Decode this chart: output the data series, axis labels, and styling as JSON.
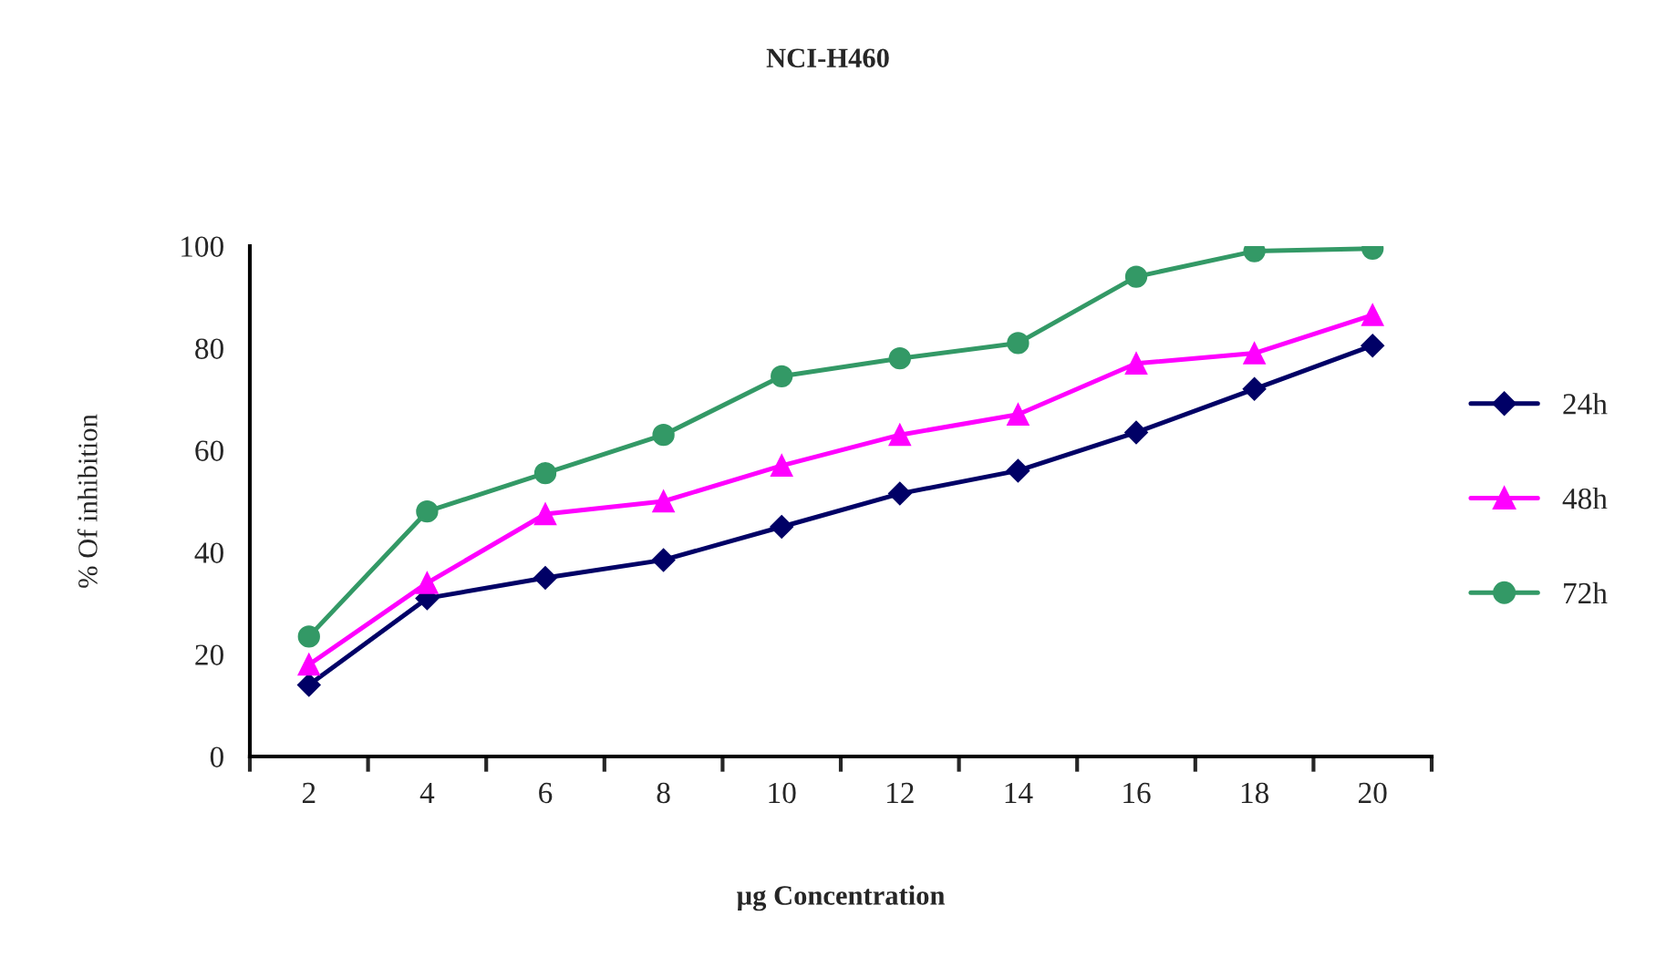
{
  "chart_data": {
    "type": "line",
    "title": "NCI-H460",
    "xlabel": "µg Concentration",
    "ylabel": "% Of inhibition",
    "categories": [
      "2",
      "4",
      "6",
      "8",
      "10",
      "12",
      "14",
      "16",
      "18",
      "20"
    ],
    "series": [
      {
        "name": "24h",
        "color": "#000066",
        "marker": "diamond",
        "values": [
          14,
          31,
          35,
          38.5,
          45,
          51.5,
          56,
          63.5,
          72,
          80.5
        ]
      },
      {
        "name": "48h",
        "color": "#ff00ff",
        "marker": "triangle",
        "values": [
          18,
          34,
          47.5,
          50,
          57,
          63,
          67,
          77,
          79,
          86.5
        ]
      },
      {
        "name": "72h",
        "color": "#339966",
        "marker": "circle",
        "values": [
          23.5,
          48,
          55.5,
          63,
          74.5,
          78,
          81,
          94,
          99,
          99.5
        ]
      }
    ],
    "ylim": [
      0,
      100
    ],
    "yticks": [
      0,
      20,
      40,
      60,
      80,
      100
    ],
    "grid": false,
    "legend": "right",
    "line_style": "solid"
  }
}
